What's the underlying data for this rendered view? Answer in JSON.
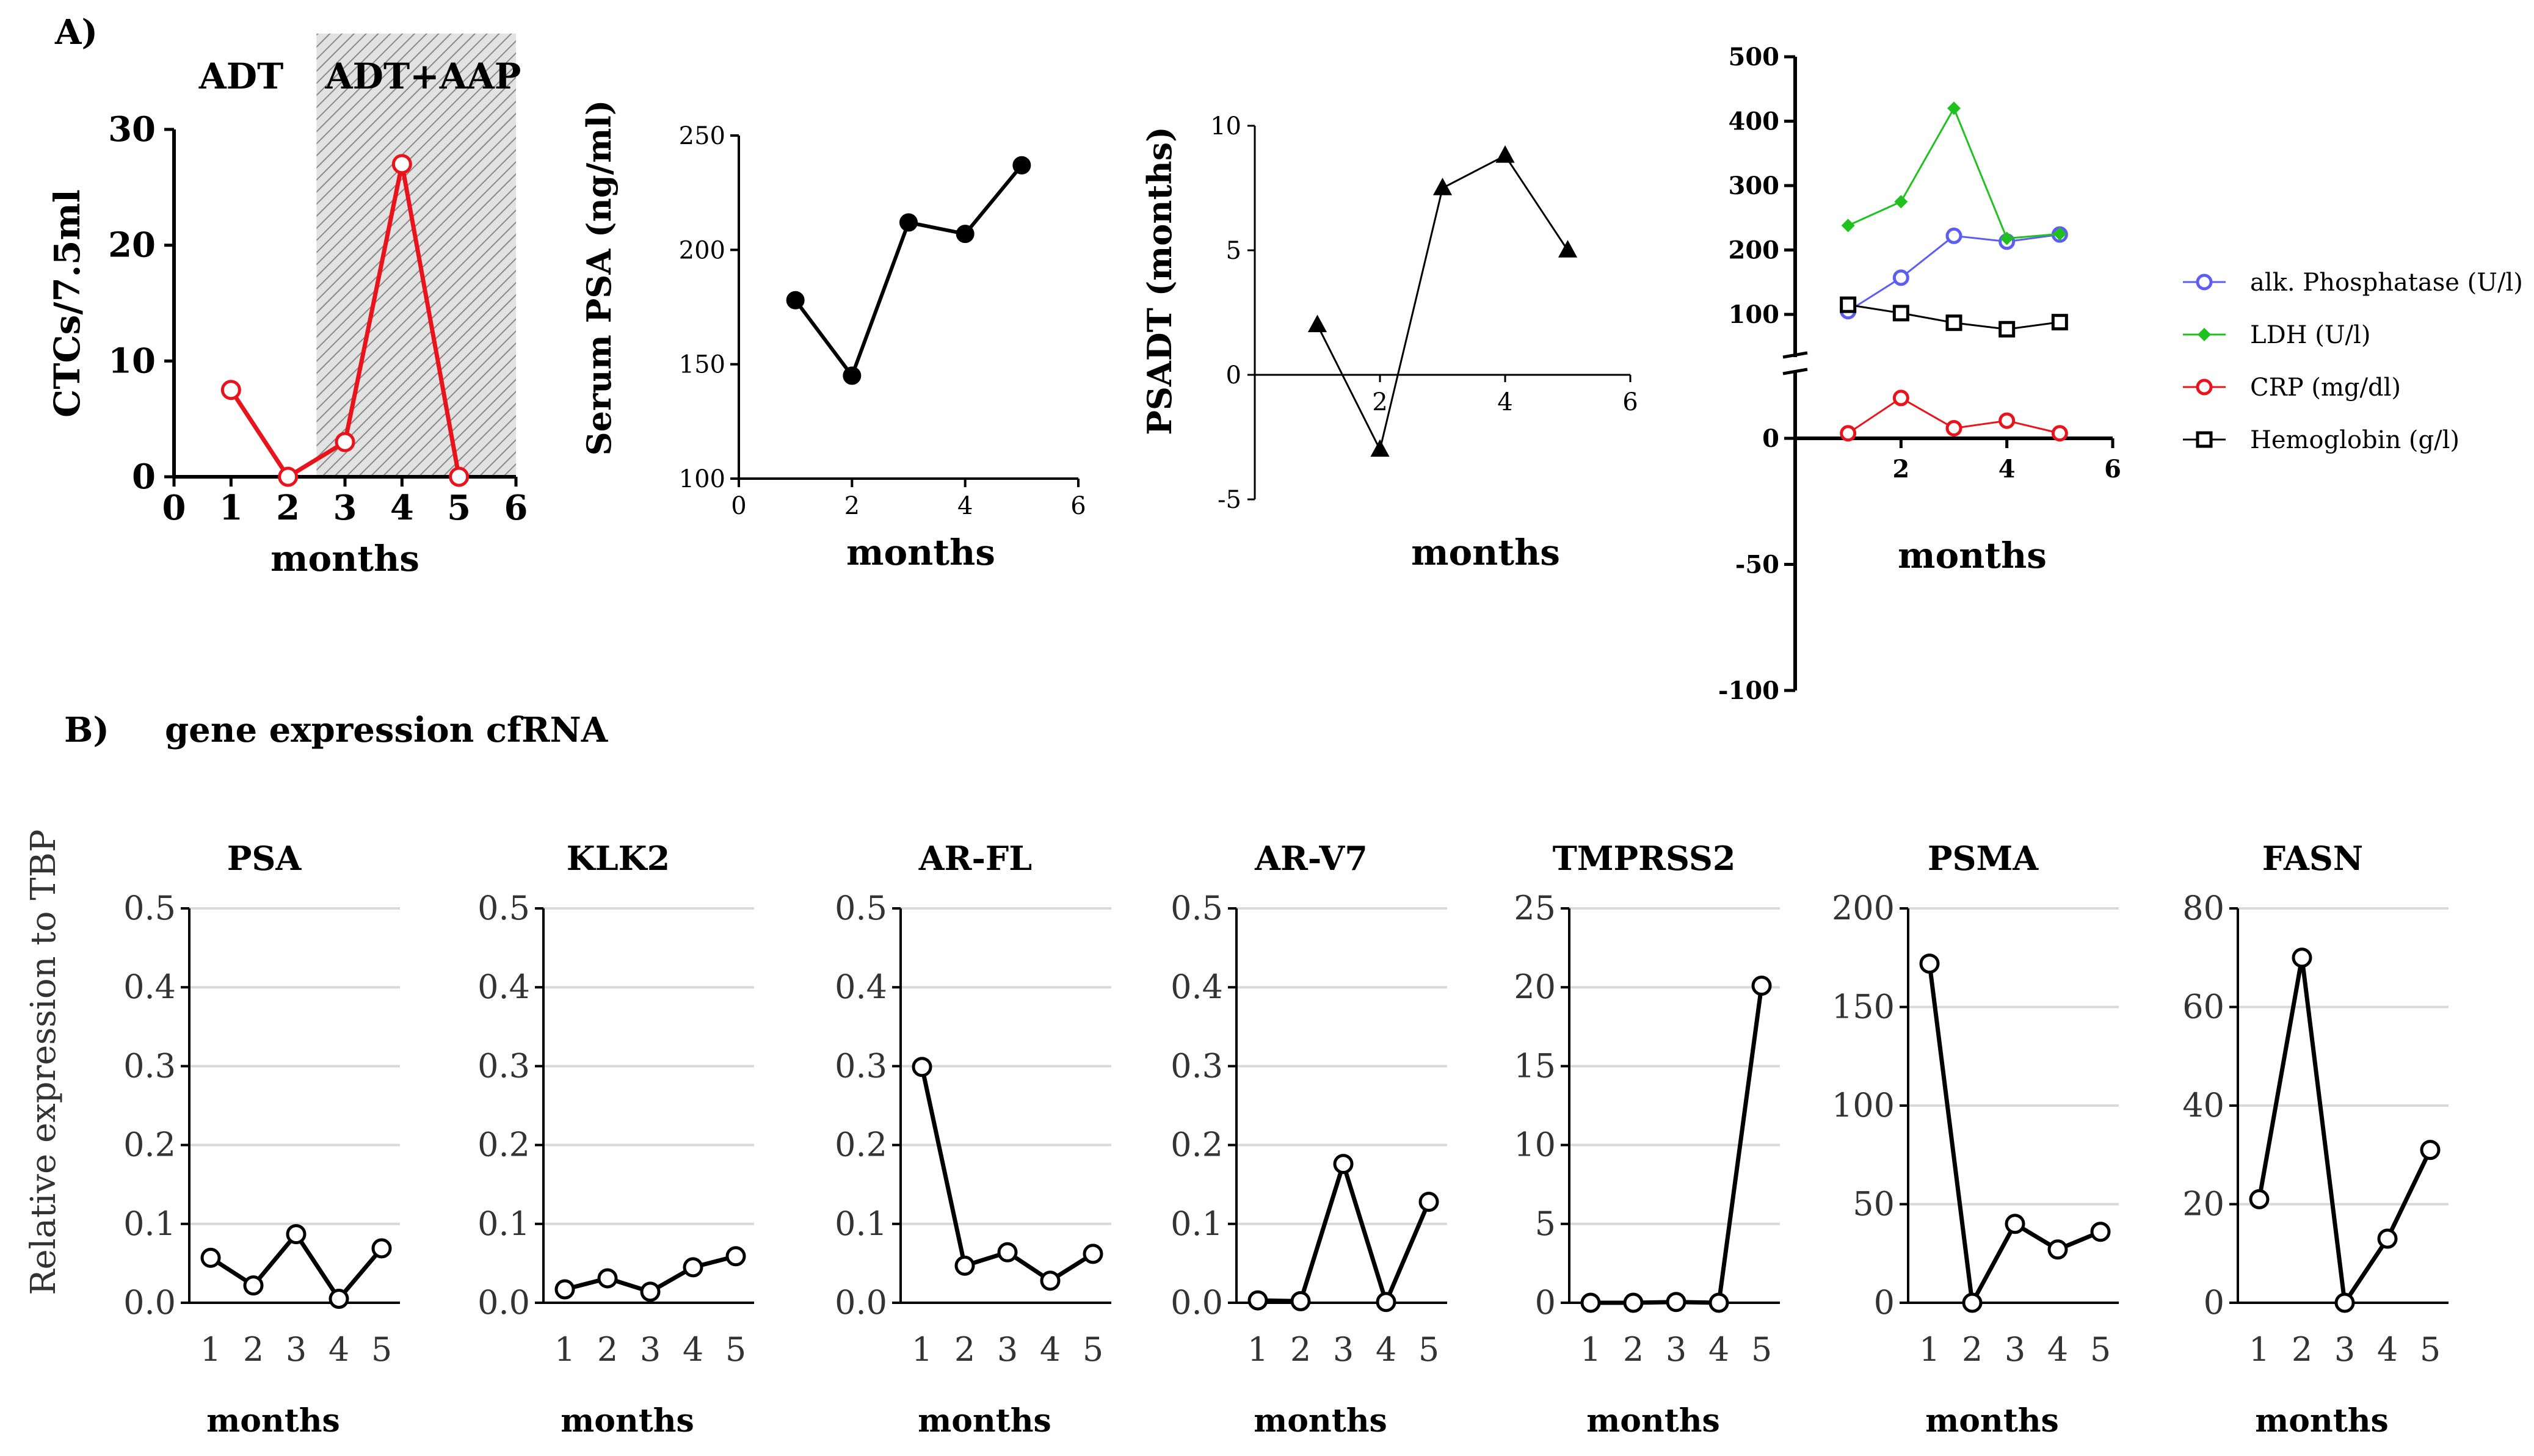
{
  "figure": {
    "panel_a_label": "A)",
    "panel_b_label": "B)",
    "panel_b_title": "gene expression cfRNA",
    "b_shared_ylabel": "Relative expression to TBP"
  },
  "chart_data": [
    {
      "id": "ctc",
      "type": "line",
      "title": "",
      "xlabel": "months",
      "ylabel": "CTCs/7.5ml",
      "xlim": [
        0,
        6
      ],
      "ylim": [
        0,
        30
      ],
      "xticks": [
        "0",
        "1",
        "2",
        "3",
        "4",
        "5",
        "6"
      ],
      "yticks": [
        "0",
        "10",
        "20",
        "30"
      ],
      "shaded_region": {
        "x0": 2.5,
        "x1": 6
      },
      "annotations": [
        "ADT",
        "ADT+AAP"
      ],
      "series": [
        {
          "name": "CTCs",
          "color": "#e8131b",
          "marker": "circle-open",
          "x": [
            1,
            2,
            3,
            4,
            5
          ],
          "y": [
            7.5,
            0,
            3,
            27,
            0
          ]
        }
      ]
    },
    {
      "id": "psa_serum",
      "type": "line",
      "title": "",
      "xlabel": "months",
      "ylabel": "Serum PSA (ng/ml)",
      "xlim": [
        0,
        6
      ],
      "ylim": [
        100,
        250
      ],
      "xticks": [
        "0",
        "2",
        "4",
        "6"
      ],
      "yticks": [
        "100",
        "150",
        "200",
        "250"
      ],
      "series": [
        {
          "name": "Serum PSA",
          "color": "#000000",
          "marker": "circle-filled",
          "x": [
            1,
            2,
            3,
            4,
            5
          ],
          "y": [
            178,
            145,
            212,
            207,
            237
          ]
        }
      ]
    },
    {
      "id": "psadt",
      "type": "line",
      "title": "",
      "xlabel": "months",
      "ylabel": "PSADT (months)",
      "xlim": [
        0,
        6
      ],
      "ylim": [
        -5,
        10
      ],
      "xticks": [
        "2",
        "4",
        "6"
      ],
      "yticks": [
        "-5",
        "0",
        "5",
        "10"
      ],
      "series": [
        {
          "name": "PSADT",
          "color": "#000000",
          "marker": "triangle",
          "x": [
            1,
            2,
            3,
            4,
            5
          ],
          "y": [
            2,
            -3,
            7.5,
            8.8,
            5
          ]
        }
      ]
    },
    {
      "id": "labs",
      "type": "line",
      "title": "",
      "xlabel": "months",
      "ylabel": "",
      "xlim": [
        0,
        6
      ],
      "ylim": [
        -100,
        500
      ],
      "axis_break": [
        20,
        60
      ],
      "xticks": [
        "2",
        "4",
        "6"
      ],
      "yticks": [
        "-100",
        "-50",
        "0",
        "100",
        "200",
        "300",
        "400",
        "500"
      ],
      "legend_position": "right",
      "series": [
        {
          "name": "alk. Phosphatase (U/l)",
          "color": "#5b5ef0",
          "marker": "circle-open",
          "x": [
            1,
            2,
            3,
            4,
            5
          ],
          "y": [
            105,
            157,
            222,
            213,
            224
          ]
        },
        {
          "name": "LDH (U/l)",
          "color": "#1fc11f",
          "marker": "diamond",
          "x": [
            1,
            2,
            3,
            4,
            5
          ],
          "y": [
            238,
            275,
            420,
            218,
            225
          ]
        },
        {
          "name": "CRP (mg/dl)",
          "color": "#e8131b",
          "marker": "circle-open",
          "x": [
            1,
            2,
            3,
            4,
            5
          ],
          "y": [
            2,
            16,
            4,
            7,
            2
          ]
        },
        {
          "name": "Hemoglobin (g/l)",
          "color": "#000000",
          "marker": "square-open",
          "x": [
            1,
            2,
            3,
            4,
            5
          ],
          "y": [
            115,
            102,
            87,
            77,
            88
          ]
        }
      ]
    },
    {
      "id": "g_psa",
      "type": "line",
      "title": "PSA",
      "xlabel": "months",
      "ylabel": "",
      "ylim": [
        0,
        0.5
      ],
      "yticks": [
        "0.0",
        "0.1",
        "0.2",
        "0.3",
        "0.4",
        "0.5"
      ],
      "xticks": [
        "1",
        "2",
        "3",
        "4",
        "5"
      ],
      "series": [
        {
          "name": "PSA",
          "x": [
            1,
            2,
            3,
            4,
            5
          ],
          "y": [
            0.057,
            0.022,
            0.087,
            0.005,
            0.069
          ]
        }
      ]
    },
    {
      "id": "g_klk2",
      "type": "line",
      "title": "KLK2",
      "xlabel": "months",
      "ylabel": "",
      "ylim": [
        0,
        0.5
      ],
      "yticks": [
        "0.0",
        "0.1",
        "0.2",
        "0.3",
        "0.4",
        "0.5"
      ],
      "xticks": [
        "1",
        "2",
        "3",
        "4",
        "5"
      ],
      "series": [
        {
          "name": "KLK2",
          "x": [
            1,
            2,
            3,
            4,
            5
          ],
          "y": [
            0.017,
            0.031,
            0.014,
            0.045,
            0.059
          ]
        }
      ]
    },
    {
      "id": "g_arfl",
      "type": "line",
      "title": "AR-FL",
      "xlabel": "months",
      "ylabel": "",
      "ylim": [
        0,
        0.5
      ],
      "yticks": [
        "0.0",
        "0.1",
        "0.2",
        "0.3",
        "0.4",
        "0.5"
      ],
      "xticks": [
        "1",
        "2",
        "3",
        "4",
        "5"
      ],
      "series": [
        {
          "name": "AR-FL",
          "x": [
            1,
            2,
            3,
            4,
            5
          ],
          "y": [
            0.299,
            0.047,
            0.064,
            0.028,
            0.062
          ]
        }
      ]
    },
    {
      "id": "g_arv7",
      "type": "line",
      "title": "AR-V7",
      "xlabel": "months",
      "ylabel": "",
      "ylim": [
        0,
        0.5
      ],
      "yticks": [
        "0.0",
        "0.1",
        "0.2",
        "0.3",
        "0.4",
        "0.5"
      ],
      "xticks": [
        "1",
        "2",
        "3",
        "4",
        "5"
      ],
      "series": [
        {
          "name": "AR-V7",
          "x": [
            1,
            2,
            3,
            4,
            5
          ],
          "y": [
            0.003,
            0.002,
            0.176,
            0.001,
            0.128
          ]
        }
      ]
    },
    {
      "id": "g_tmprss2",
      "type": "line",
      "title": "TMPRSS2",
      "xlabel": "months",
      "ylabel": "",
      "ylim": [
        0,
        25
      ],
      "yticks": [
        "0",
        "5",
        "10",
        "15",
        "20",
        "25"
      ],
      "xticks": [
        "1",
        "2",
        "3",
        "4",
        "5"
      ],
      "series": [
        {
          "name": "TMPRSS2",
          "x": [
            1,
            2,
            3,
            4,
            5
          ],
          "y": [
            0,
            0,
            0.05,
            0,
            20.1
          ]
        }
      ]
    },
    {
      "id": "g_psma",
      "type": "line",
      "title": "PSMA",
      "xlabel": "months",
      "ylabel": "",
      "ylim": [
        0,
        200
      ],
      "yticks": [
        "0",
        "50",
        "100",
        "150",
        "200"
      ],
      "xticks": [
        "1",
        "2",
        "3",
        "4",
        "5"
      ],
      "series": [
        {
          "name": "PSMA",
          "x": [
            1,
            2,
            3,
            4,
            5
          ],
          "y": [
            172,
            0,
            40,
            27,
            36
          ]
        }
      ]
    },
    {
      "id": "g_fasn",
      "type": "line",
      "title": "FASN",
      "xlabel": "months",
      "ylabel": "",
      "ylim": [
        0,
        80
      ],
      "yticks": [
        "0",
        "20",
        "40",
        "60",
        "80"
      ],
      "xticks": [
        "1",
        "2",
        "3",
        "4",
        "5"
      ],
      "series": [
        {
          "name": "FASN",
          "x": [
            1,
            2,
            3,
            4,
            5
          ],
          "y": [
            21,
            70,
            0,
            13,
            31
          ]
        }
      ]
    }
  ]
}
